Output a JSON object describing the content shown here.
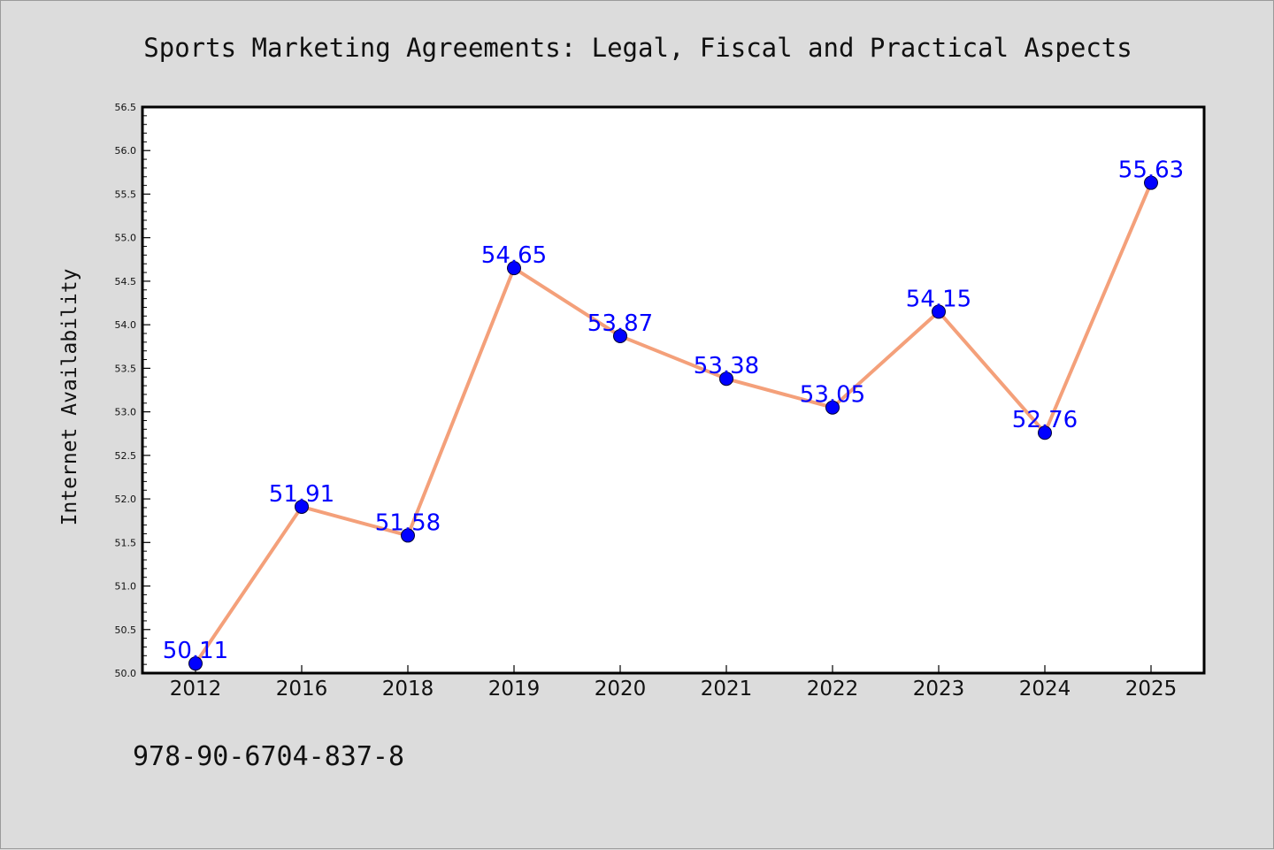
{
  "colors": {
    "line": "#f4a07a",
    "marker": "#0000ff",
    "label": "#0000ff",
    "background": "#dcdcdc",
    "plot_background": "#ffffff"
  },
  "isbn": "978-90-6704-837-8",
  "chart_data": {
    "type": "line",
    "title": "Sports Marketing Agreements: Legal, Fiscal and Practical Aspects",
    "xlabel": "",
    "ylabel": "Internet Availability",
    "categories": [
      "2012",
      "2016",
      "2018",
      "2019",
      "2020",
      "2021",
      "2022",
      "2023",
      "2024",
      "2025"
    ],
    "values": [
      50.11,
      51.91,
      51.58,
      54.65,
      53.87,
      53.38,
      53.05,
      54.15,
      52.76,
      55.63
    ],
    "data_labels": [
      "50.11",
      "51.91",
      "51.58",
      "54.65",
      "53.87",
      "53.38",
      "53.05",
      "54.15",
      "52.76",
      "55.63"
    ],
    "ylim": [
      50.0,
      56.5
    ],
    "y_ticks": [
      "50.0",
      "50.5",
      "51.0",
      "51.5",
      "52.0",
      "52.5",
      "53.0",
      "53.5",
      "54.0",
      "54.5",
      "55.0",
      "55.5",
      "56.0",
      "56.5"
    ],
    "grid": false,
    "legend": "none"
  }
}
